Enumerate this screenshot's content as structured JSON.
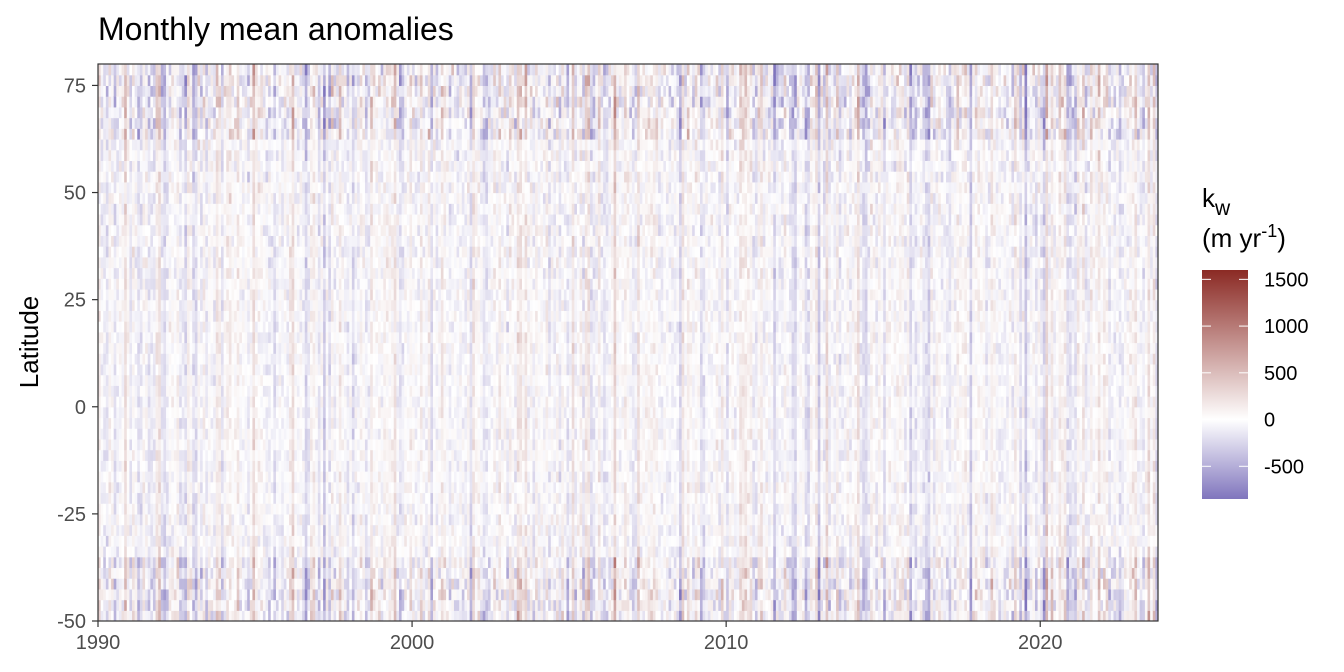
{
  "chart_data": {
    "type": "heatmap",
    "title": "Monthly mean anomalies",
    "xlabel": "",
    "ylabel": "Latitude",
    "x_ticks": [
      1990,
      2000,
      2010,
      2020
    ],
    "y_ticks": [
      -50,
      -25,
      0,
      25,
      50,
      75
    ],
    "xlim": [
      1990,
      2023.75
    ],
    "ylim": [
      -50,
      80
    ],
    "grid": false,
    "legend": {
      "title_main": "k",
      "title_sub": "w",
      "unit_prefix": "(m yr",
      "unit_sup": "-1",
      "unit_suffix": ")",
      "ticks": [
        1500,
        1000,
        500,
        0,
        -500
      ],
      "range": [
        -850,
        1600
      ],
      "placement": "right",
      "colors": {
        "low": "#8075bd",
        "mid": "#ffffff",
        "high": "#8b2a24"
      }
    }
  }
}
